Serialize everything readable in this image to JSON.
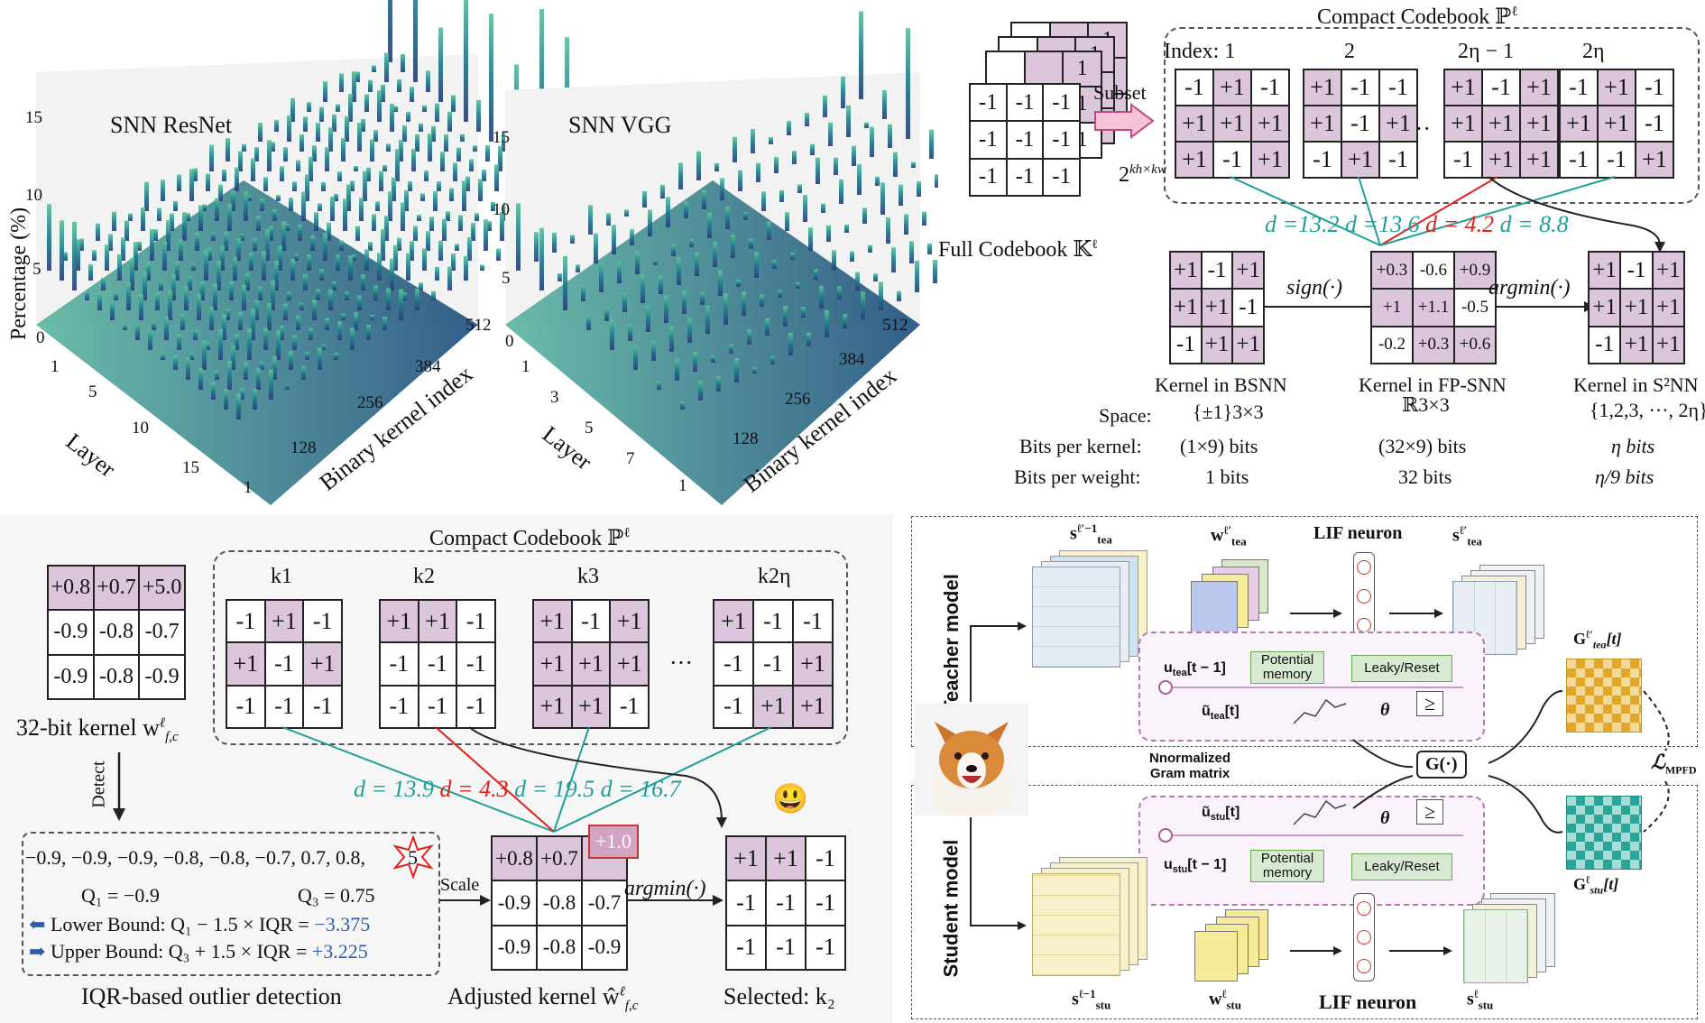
{
  "panel_a": {
    "left_chart_title": "SNN ResNet",
    "right_chart_title": "SNN VGG",
    "ylabel": "Percentage (%)",
    "left_y_ticks": [
      "15",
      "10",
      "5",
      "0"
    ],
    "right_y_ticks": [
      "15",
      "10",
      "5",
      "0"
    ],
    "left_layer_ticks": [
      "1",
      "5",
      "10",
      "15"
    ],
    "right_layer_ticks": [
      "1",
      "3",
      "5",
      "7"
    ],
    "kernel_ticks": [
      "512",
      "384",
      "256",
      "128",
      "1"
    ],
    "layer_label": "Layer",
    "kernel_label": "Binary kernel index"
  },
  "panel_b": {
    "title": "Compact Codebook ℙ",
    "title_sup": "ℓ",
    "subset_label": "Subset",
    "full_codebook": "Full Codebook 𝕂",
    "full_codebook_sup": "ℓ",
    "exp_label": "2",
    "exp_sup": "kh×kw",
    "index_labels": [
      "Index: 1",
      "2",
      "2η − 1",
      "2η"
    ],
    "ellipsis": "···",
    "full_grid": [
      "-1",
      "-1",
      "-1",
      "-1",
      "-1",
      "-1",
      "-1",
      "-1",
      "-1"
    ],
    "back_ones": [
      "1",
      "1",
      "1"
    ],
    "codebook": [
      [
        "-1",
        "+1",
        "-1",
        "+1",
        "+1",
        "+1",
        "+1",
        "-1",
        "+1"
      ],
      [
        "+1",
        "-1",
        "-1",
        "+1",
        "-1",
        "+1",
        "-1",
        "+1",
        "-1"
      ],
      [
        "+1",
        "-1",
        "+1",
        "+1",
        "+1",
        "+1",
        "-1",
        "+1",
        "+1"
      ],
      [
        "-1",
        "+1",
        "-1",
        "+1",
        "+1",
        "-1",
        "-1",
        "-1",
        "+1"
      ]
    ],
    "distances": [
      "d =13.2",
      "d =13.6",
      "d = 4.2",
      "d = 8.8"
    ],
    "bsnn_grid": [
      "+1",
      "-1",
      "+1",
      "+1",
      "+1",
      "-1",
      "-1",
      "+1",
      "+1"
    ],
    "fp_grid": [
      "+0.3",
      "-0.6",
      "+0.9",
      "+1",
      "+1.1",
      "-0.5",
      "-0.2",
      "+0.3",
      "+0.6"
    ],
    "s2nn_grid": [
      "+1",
      "-1",
      "+1",
      "+1",
      "+1",
      "+1",
      "-1",
      "+1",
      "+1"
    ],
    "sign_label": "sign(·)",
    "argmin_label": "argmin(·)",
    "kernel_bsnn": "Kernel in BSNN",
    "kernel_fp": "Kernel in FP-SNN",
    "kernel_s2nn": "Kernel in S²NN",
    "space_label": "Space:",
    "space_bsnn": "{±1}3×3",
    "space_fp": "ℝ3×3",
    "space_s2nn": "{1,2,3, ···, 2η}",
    "bits_kernel_label": "Bits per kernel:",
    "bits_kernel_bsnn": "(1×9) bits",
    "bits_kernel_fp": "(32×9) bits",
    "bits_kernel_s2nn": "η bits",
    "bits_weight_label": "Bits per weight:",
    "bits_weight_bsnn": "1 bits",
    "bits_weight_fp": "32 bits",
    "bits_weight_s2nn": "η/9 bits"
  },
  "panel_c": {
    "title": "Compact Codebook ℙ",
    "title_sup": "ℓ",
    "kernel_grid": [
      "+0.8",
      "+0.7",
      "+5.0",
      "-0.9",
      "-0.8",
      "-0.7",
      "-0.9",
      "-0.8",
      "-0.9"
    ],
    "kernel_caption": "32-bit kernel w",
    "kernel_caption_sub": "f,c",
    "kernel_caption_sup": "ℓ",
    "k_labels": [
      "k1",
      "k2",
      "k3",
      "k2η"
    ],
    "codebook": [
      [
        "-1",
        "+1",
        "-1",
        "+1",
        "-1",
        "+1",
        "-1",
        "-1",
        "-1"
      ],
      [
        "+1",
        "+1",
        "-1",
        "-1",
        "-1",
        "-1",
        "-1",
        "-1",
        "-1"
      ],
      [
        "+1",
        "-1",
        "+1",
        "+1",
        "+1",
        "+1",
        "+1",
        "+1",
        "-1"
      ],
      [
        "+1",
        "-1",
        "-1",
        "-1",
        "-1",
        "+1",
        "-1",
        "+1",
        "+1"
      ]
    ],
    "ellipsis": "···",
    "distances": [
      "d = 13.9",
      "d = 4.3",
      "d = 19.5",
      "d = 16.7"
    ],
    "detect_label": "Detect",
    "sorted_values": "−0.9, −0.9, −0.9, −0.8, −0.8, −0.7, 0.7, 0.8,",
    "outlier": "5",
    "q1": "Q₁ = −0.9",
    "q3": "Q₃ = 0.75",
    "lower_bound": "Lower Bound: Q₁ − 1.5 × IQR = ",
    "lower_value": "−3.375",
    "upper_bound": "Upper Bound: Q₃ + 1.5 × IQR = ",
    "upper_value": "+3.225",
    "iqr_caption": "IQR-based outlier detection",
    "scale_label": "Scale",
    "adjusted_grid": [
      "+0.8",
      "+0.7",
      "",
      "-0.9",
      "-0.8",
      "-0.7",
      "-0.9",
      "-0.8",
      "-0.9"
    ],
    "adjusted_value": "+1.0",
    "adjusted_caption": "Adjusted kernel ŵ",
    "argmin_label": "argmin(·)",
    "selected_grid": [
      "+1",
      "+1",
      "-1",
      "-1",
      "-1",
      "-1",
      "-1",
      "-1",
      "-1"
    ],
    "selected_caption": "Selected: k₂",
    "smiley": "😃"
  },
  "panel_d": {
    "teacher_label": "Teacher model",
    "student_label": "Student model",
    "s_tea_prev": "s",
    "s_tea_prev_sub": "tea",
    "s_tea_prev_sup": "ℓ′−1",
    "w_tea": "w",
    "w_tea_sub": "tea",
    "w_tea_sup": "ℓ′",
    "lif_top": "LIF neuron",
    "s_tea": "s",
    "s_tea_sub": "tea",
    "s_tea_sup": "ℓ′",
    "u_tea_prev": "u",
    "u_tea_prev_sub": "tea",
    "u_tea_prev_arg": "[t − 1]",
    "u_tea_tilde": "ũ",
    "u_tea_tilde_sub": "tea",
    "u_tea_tilde_arg": "[t]",
    "potential_memory": "Potential memory",
    "leaky_reset": "Leaky/Reset",
    "theta": "θ",
    "ge": "≥",
    "g_tea": "G",
    "g_tea_sub": "tea",
    "g_tea_sup": "ℓ′",
    "g_tea_arg": "[t]",
    "gram_label_1": "Nnormalized",
    "gram_label_2": "Gram matrix",
    "g_op": "G(·)",
    "loss": "ℒ",
    "loss_sub": "MPFD",
    "u_stu_tilde": "ũ",
    "u_stu_tilde_sub": "stu",
    "u_stu_tilde_arg": "[t]",
    "u_stu_prev": "u",
    "u_stu_prev_sub": "stu",
    "u_stu_prev_arg": "[t − 1]",
    "g_stu": "G",
    "g_stu_sub": "stu",
    "g_stu_sup": "ℓ",
    "g_stu_arg": "[t]",
    "s_stu_prev": "s",
    "s_stu_prev_sub": "stu",
    "s_stu_prev_sup": "ℓ−1",
    "w_stu": "w",
    "w_stu_sub": "stu",
    "w_stu_sup": "ℓ",
    "lif_bottom": "LIF neuron",
    "s_stu": "s",
    "s_stu_sub": "stu",
    "s_stu_sup": "ℓ"
  },
  "colors": {
    "purple_cell": "#dbc6dc",
    "teal": "#1e9f98",
    "red": "#e0221c",
    "blue": "#2e5ea7",
    "gold": "#e0a72a",
    "green_box": "#d9ead3"
  }
}
